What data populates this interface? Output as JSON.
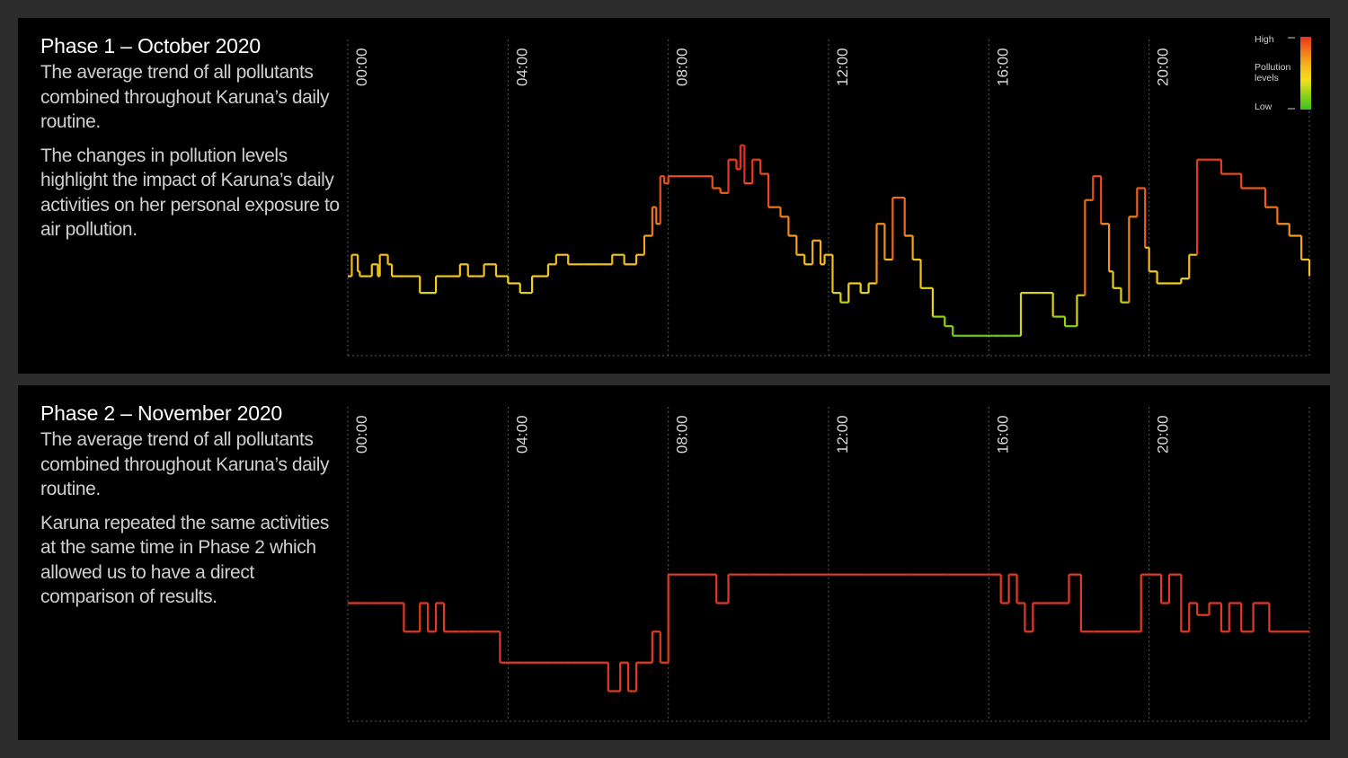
{
  "phase1": {
    "title": "Phase 1  – October 2020",
    "paragraph1": "The average trend of all pollutants combined throughout Karuna’s daily routine.",
    "paragraph2": "The changes in pollution levels highlight the impact of Karuna’s daily activities on her personal exposure to air pollution."
  },
  "phase2": {
    "title": "Phase 2 – November 2020",
    "paragraph1": "The average trend of all pollutants combined throughout Karuna’s daily routine.",
    "paragraph2": "Karuna repeated the same activities at the same time in Phase 2 which allowed us to have a direct comparison of results."
  },
  "legend": {
    "high": "High",
    "label": "Pollution levels",
    "low": "Low",
    "colors": [
      "#e8321e",
      "#f07a1a",
      "#f5b81a",
      "#f2e01a",
      "#8fd21a",
      "#3cc21e"
    ]
  },
  "chart_data": [
    {
      "type": "line",
      "title": "Phase 1  – October 2020",
      "x_unit": "hour of day",
      "xlim": [
        0,
        24
      ],
      "ylim": [
        0,
        1
      ],
      "y_scale": "relative pollution level (low to high)",
      "x_ticks": [
        "00:00",
        "04:00",
        "08:00",
        "12:00",
        "16:00",
        "20:00"
      ],
      "grid": true,
      "series": [
        {
          "x": [
            0,
            0.1,
            0.25,
            0.3,
            0.5,
            0.6,
            0.75,
            0.8,
            1.0,
            1.1,
            1.3,
            1.4,
            1.8,
            2.2,
            2.6,
            2.8,
            3.0,
            3.2,
            3.4,
            3.7,
            4.0,
            4.3,
            4.6,
            4.8,
            5.0,
            5.2,
            5.5,
            6.0,
            6.3,
            6.6,
            6.9,
            7.2,
            7.4,
            7.6,
            7.7,
            7.8,
            7.9,
            8.0,
            8.2,
            8.6,
            8.9,
            9.1,
            9.3,
            9.5,
            9.7,
            9.8,
            9.9,
            10.1,
            10.3,
            10.5,
            10.8,
            11.0,
            11.2,
            11.4,
            11.6,
            11.8,
            11.9,
            12.1,
            12.3,
            12.5,
            12.8,
            13.0,
            13.2,
            13.4,
            13.6,
            13.9,
            14.1,
            14.3,
            14.6,
            14.9,
            15.1,
            15.3,
            15.6,
            15.9,
            16.1,
            16.3,
            16.5,
            16.8,
            17.0,
            17.3,
            17.6,
            17.9,
            18.2,
            18.4,
            18.6,
            18.8,
            19.0,
            19.1,
            19.3,
            19.5,
            19.7,
            19.9,
            20.0,
            20.2,
            20.5,
            20.8,
            21.0,
            21.2,
            21.5,
            21.8,
            22.0,
            22.3,
            22.6,
            22.9,
            23.2,
            23.5,
            23.8,
            24.0
          ],
          "values": [
            0.33,
            0.42,
            0.35,
            0.33,
            0.33,
            0.38,
            0.33,
            0.42,
            0.38,
            0.33,
            0.33,
            0.33,
            0.26,
            0.33,
            0.33,
            0.38,
            0.33,
            0.33,
            0.38,
            0.33,
            0.3,
            0.26,
            0.33,
            0.33,
            0.38,
            0.42,
            0.38,
            0.38,
            0.38,
            0.42,
            0.38,
            0.42,
            0.5,
            0.62,
            0.55,
            0.75,
            0.72,
            0.75,
            0.75,
            0.75,
            0.75,
            0.7,
            0.68,
            0.82,
            0.78,
            0.88,
            0.72,
            0.82,
            0.76,
            0.62,
            0.58,
            0.5,
            0.42,
            0.38,
            0.48,
            0.38,
            0.42,
            0.26,
            0.22,
            0.3,
            0.26,
            0.3,
            0.55,
            0.4,
            0.66,
            0.5,
            0.4,
            0.28,
            0.16,
            0.12,
            0.08,
            0.08,
            0.08,
            0.08,
            0.08,
            0.08,
            0.08,
            0.26,
            0.26,
            0.26,
            0.16,
            0.12,
            0.25,
            0.65,
            0.75,
            0.55,
            0.35,
            0.28,
            0.22,
            0.58,
            0.7,
            0.45,
            0.35,
            0.3,
            0.3,
            0.32,
            0.42,
            0.82,
            0.82,
            0.76,
            0.76,
            0.7,
            0.7,
            0.62,
            0.55,
            0.5,
            0.4,
            0.33
          ]
        }
      ]
    },
    {
      "type": "line",
      "title": "Phase 2 – November 2020",
      "x_unit": "hour of day",
      "xlim": [
        0,
        24
      ],
      "ylim": [
        0,
        1
      ],
      "y_scale": "relative pollution level (low to high)",
      "x_ticks": [
        "00:00",
        "04:00",
        "08:00",
        "12:00",
        "16:00",
        "20:00"
      ],
      "grid": true,
      "series": [
        {
          "x": [
            0,
            0.4,
            0.6,
            0.9,
            1.4,
            1.6,
            1.8,
            2.0,
            2.2,
            2.4,
            2.6,
            2.8,
            3.0,
            3.2,
            3.6,
            3.8,
            4.0,
            4.4,
            4.8,
            5.1,
            5.4,
            5.6,
            5.8,
            6.2,
            6.5,
            6.8,
            7.0,
            7.2,
            7.6,
            7.8,
            8.0,
            8.5,
            9.0,
            9.2,
            9.5,
            10.0,
            10.6,
            11.0,
            12.0,
            13.0,
            14.0,
            15.0,
            16.0,
            16.3,
            16.5,
            16.7,
            16.9,
            17.1,
            17.3,
            17.6,
            18.0,
            18.3,
            18.6,
            18.9,
            19.2,
            19.5,
            19.8,
            20.0,
            20.3,
            20.5,
            20.8,
            21.0,
            21.2,
            21.5,
            21.8,
            22.0,
            22.3,
            22.6,
            23.0,
            23.5,
            24.0
          ],
          "values": [
            0.5,
            0.5,
            0.5,
            0.5,
            0.38,
            0.38,
            0.5,
            0.38,
            0.5,
            0.38,
            0.38,
            0.38,
            0.38,
            0.38,
            0.38,
            0.25,
            0.25,
            0.25,
            0.25,
            0.25,
            0.25,
            0.25,
            0.25,
            0.25,
            0.13,
            0.25,
            0.13,
            0.25,
            0.38,
            0.25,
            0.62,
            0.62,
            0.62,
            0.5,
            0.62,
            0.62,
            0.62,
            0.62,
            0.62,
            0.62,
            0.62,
            0.62,
            0.62,
            0.5,
            0.62,
            0.5,
            0.38,
            0.5,
            0.5,
            0.5,
            0.62,
            0.38,
            0.38,
            0.38,
            0.38,
            0.38,
            0.62,
            0.62,
            0.5,
            0.62,
            0.38,
            0.5,
            0.45,
            0.5,
            0.38,
            0.5,
            0.38,
            0.5,
            0.38,
            0.38,
            0.38
          ]
        }
      ]
    }
  ]
}
